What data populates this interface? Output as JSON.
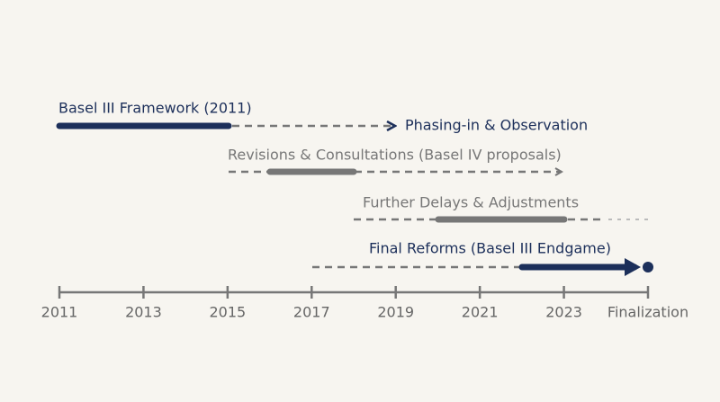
{
  "timeline": {
    "axis_labels": [
      "2011",
      "2013",
      "2015",
      "2017",
      "2019",
      "2021",
      "2023",
      "Finalization"
    ],
    "phases": [
      {
        "label": "Basel III Framework (2011)"
      },
      {
        "label": "Phasing-in & Observation"
      },
      {
        "label": "Revisions & Consultations (Basel IV proposals)"
      },
      {
        "label": "Further Delays & Adjustments"
      },
      {
        "label": "Final Reforms (Basel III Endgame)"
      }
    ]
  }
}
